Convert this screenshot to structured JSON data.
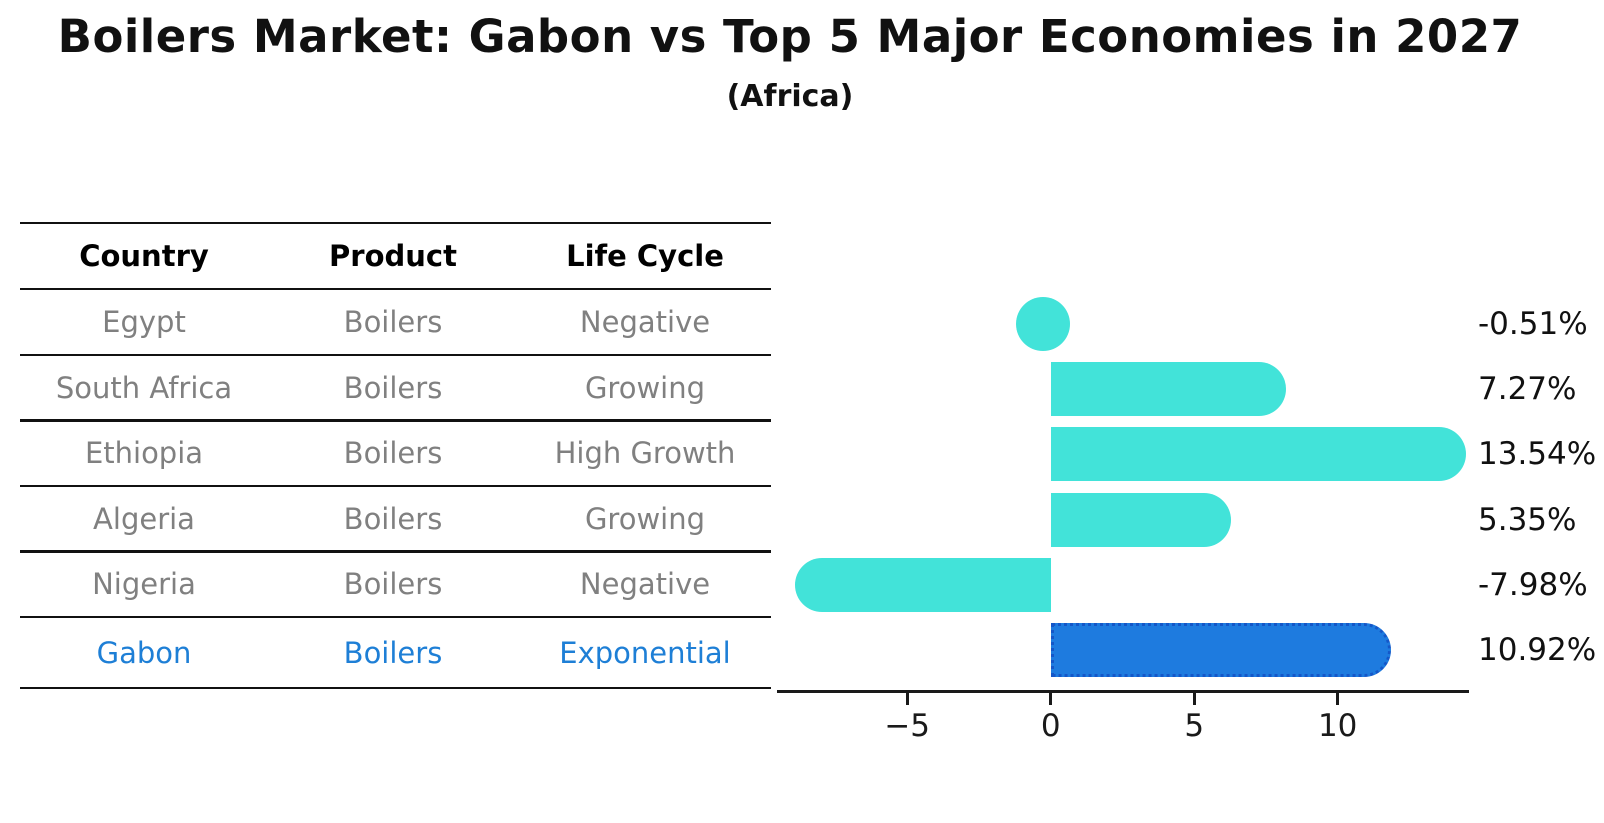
{
  "title": "Boilers Market: Gabon vs Top 5 Major Economies in 2027",
  "subtitle": "(Africa)",
  "table": {
    "headers": [
      "Country",
      "Product",
      "Life Cycle"
    ],
    "rows": [
      {
        "country": "Egypt",
        "product": "Boilers",
        "life_cycle": "Negative",
        "highlight": false
      },
      {
        "country": "South Africa",
        "product": "Boilers",
        "life_cycle": "Growing",
        "highlight": false
      },
      {
        "country": "Ethiopia",
        "product": "Boilers",
        "life_cycle": "High Growth",
        "highlight": false
      },
      {
        "country": "Algeria",
        "product": "Boilers",
        "life_cycle": "Growing",
        "highlight": false
      },
      {
        "country": "Nigeria",
        "product": "Boilers",
        "life_cycle": "Negative",
        "highlight": false
      },
      {
        "country": "Gabon",
        "product": "Boilers",
        "life_cycle": "Exponential",
        "highlight": true
      }
    ]
  },
  "chart_data": {
    "type": "bar",
    "orientation": "horizontal",
    "categories": [
      "Egypt",
      "South Africa",
      "Ethiopia",
      "Algeria",
      "Nigeria",
      "Gabon"
    ],
    "values": [
      -0.51,
      7.27,
      13.54,
      5.35,
      -7.98,
      10.92
    ],
    "value_labels": [
      "-0.51%",
      "7.27%",
      "13.54%",
      "5.35%",
      "-7.98%",
      "10.92%"
    ],
    "x_ticks": [
      -5,
      0,
      5,
      10
    ],
    "x_tick_labels": [
      "−5",
      "0",
      "5",
      "10"
    ],
    "xlim": [
      -9.5,
      14.6
    ],
    "grid": false,
    "legend": false,
    "highlight_index": 5,
    "title": "Boilers Market: Gabon vs Top 5 Major Economies in 2027",
    "subtitle": "(Africa)"
  },
  "colors": {
    "bar_color": "#42E3D9",
    "highlight_bar_color": "#1E7BDF",
    "highlight_bar_border": "#1457C8",
    "highlight_text": "#1E7FD6",
    "table_text": "#808080",
    "axis_text": "#1a1a1a"
  }
}
